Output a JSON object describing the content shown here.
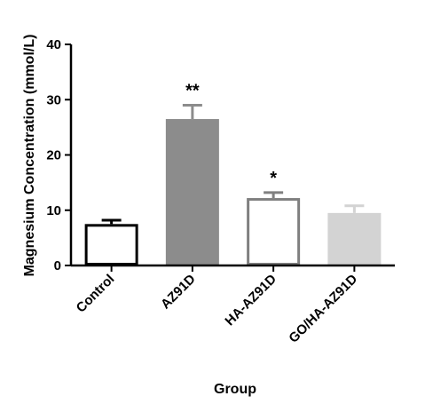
{
  "chart_data": {
    "type": "bar",
    "categories": [
      "Control",
      "AZ91D",
      "HA-AZ91D",
      "GO/HA-AZ91D"
    ],
    "values": [
      7.5,
      26.5,
      12.2,
      9.5
    ],
    "errors": [
      0.7,
      2.5,
      1.0,
      1.3
    ],
    "annotations": [
      "",
      "**",
      "*",
      ""
    ],
    "bar_fills": [
      "#ffffff",
      "#8c8c8c",
      "#ffffff",
      "#d3d3d3"
    ],
    "bar_strokes": [
      "#000000",
      "#8c8c8c",
      "#808080",
      "#d3d3d3"
    ],
    "xlabel": "Group",
    "ylabel": "Magnesium Concentration (mmol/L)",
    "ylim": [
      0,
      40
    ],
    "yticks": [
      "0",
      "10",
      "20",
      "30",
      "40"
    ],
    "grid": false
  }
}
